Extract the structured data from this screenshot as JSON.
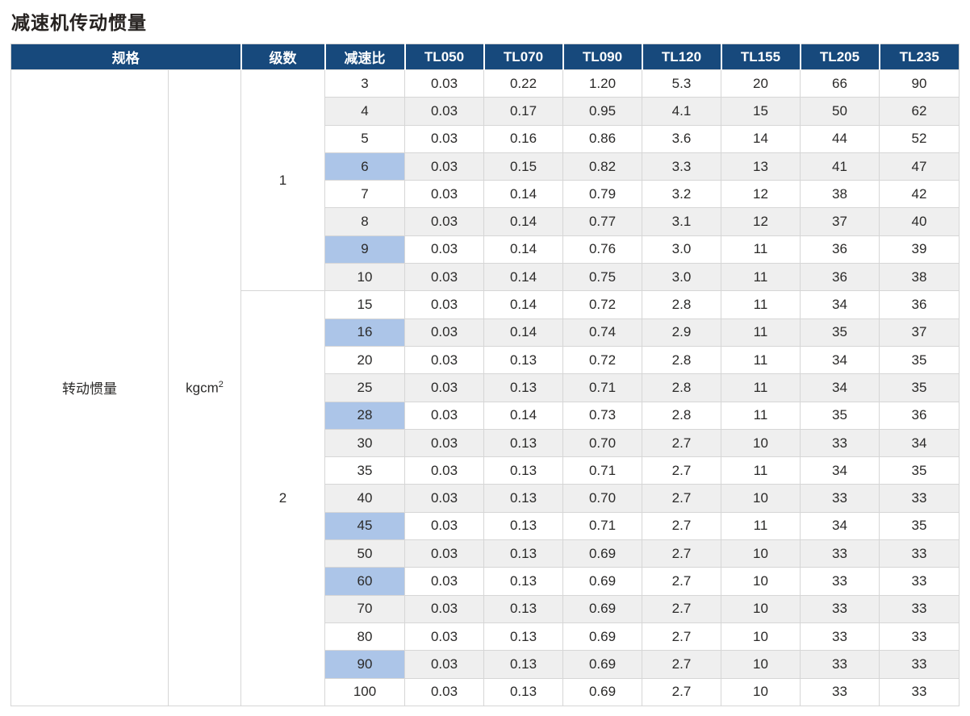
{
  "title": "减速机传动惯量",
  "colors": {
    "header_bg": "#17497C",
    "header_text": "#FFFFFF",
    "highlight_blue": "#ACC5E8",
    "stripe_gray": "#EFEFEF",
    "border_gray": "#D6D6D6",
    "text": "#2B2A29"
  },
  "table": {
    "headers": {
      "spec": "规格",
      "stages": "级数",
      "ratio": "减速比",
      "models": [
        "TL050",
        "TL070",
        "TL090",
        "TL120",
        "TL155",
        "TL205",
        "TL235"
      ]
    },
    "spec_label": "转动惯量",
    "unit_base": "kgcm",
    "unit_sup": "2",
    "stages": [
      {
        "label": "1",
        "rows": [
          {
            "ratio": "3",
            "highlight": false,
            "values": [
              "0.03",
              "0.22",
              "1.20",
              "5.3",
              "20",
              "66",
              "90"
            ]
          },
          {
            "ratio": "4",
            "highlight": false,
            "values": [
              "0.03",
              "0.17",
              "0.95",
              "4.1",
              "15",
              "50",
              "62"
            ]
          },
          {
            "ratio": "5",
            "highlight": false,
            "values": [
              "0.03",
              "0.16",
              "0.86",
              "3.6",
              "14",
              "44",
              "52"
            ]
          },
          {
            "ratio": "6",
            "highlight": true,
            "values": [
              "0.03",
              "0.15",
              "0.82",
              "3.3",
              "13",
              "41",
              "47"
            ]
          },
          {
            "ratio": "7",
            "highlight": false,
            "values": [
              "0.03",
              "0.14",
              "0.79",
              "3.2",
              "12",
              "38",
              "42"
            ]
          },
          {
            "ratio": "8",
            "highlight": false,
            "values": [
              "0.03",
              "0.14",
              "0.77",
              "3.1",
              "12",
              "37",
              "40"
            ]
          },
          {
            "ratio": "9",
            "highlight": true,
            "values": [
              "0.03",
              "0.14",
              "0.76",
              "3.0",
              "11",
              "36",
              "39"
            ]
          },
          {
            "ratio": "10",
            "highlight": false,
            "values": [
              "0.03",
              "0.14",
              "0.75",
              "3.0",
              "11",
              "36",
              "38"
            ]
          }
        ]
      },
      {
        "label": "2",
        "rows": [
          {
            "ratio": "15",
            "highlight": false,
            "values": [
              "0.03",
              "0.14",
              "0.72",
              "2.8",
              "11",
              "34",
              "36"
            ]
          },
          {
            "ratio": "16",
            "highlight": true,
            "values": [
              "0.03",
              "0.14",
              "0.74",
              "2.9",
              "11",
              "35",
              "37"
            ]
          },
          {
            "ratio": "20",
            "highlight": false,
            "values": [
              "0.03",
              "0.13",
              "0.72",
              "2.8",
              "11",
              "34",
              "35"
            ]
          },
          {
            "ratio": "25",
            "highlight": false,
            "values": [
              "0.03",
              "0.13",
              "0.71",
              "2.8",
              "11",
              "34",
              "35"
            ]
          },
          {
            "ratio": "28",
            "highlight": true,
            "values": [
              "0.03",
              "0.14",
              "0.73",
              "2.8",
              "11",
              "35",
              "36"
            ]
          },
          {
            "ratio": "30",
            "highlight": false,
            "values": [
              "0.03",
              "0.13",
              "0.70",
              "2.7",
              "10",
              "33",
              "34"
            ]
          },
          {
            "ratio": "35",
            "highlight": false,
            "values": [
              "0.03",
              "0.13",
              "0.71",
              "2.7",
              "11",
              "34",
              "35"
            ]
          },
          {
            "ratio": "40",
            "highlight": false,
            "values": [
              "0.03",
              "0.13",
              "0.70",
              "2.7",
              "10",
              "33",
              "33"
            ]
          },
          {
            "ratio": "45",
            "highlight": true,
            "values": [
              "0.03",
              "0.13",
              "0.71",
              "2.7",
              "11",
              "34",
              "35"
            ]
          },
          {
            "ratio": "50",
            "highlight": false,
            "values": [
              "0.03",
              "0.13",
              "0.69",
              "2.7",
              "10",
              "33",
              "33"
            ]
          },
          {
            "ratio": "60",
            "highlight": true,
            "values": [
              "0.03",
              "0.13",
              "0.69",
              "2.7",
              "10",
              "33",
              "33"
            ]
          },
          {
            "ratio": "70",
            "highlight": false,
            "values": [
              "0.03",
              "0.13",
              "0.69",
              "2.7",
              "10",
              "33",
              "33"
            ]
          },
          {
            "ratio": "80",
            "highlight": false,
            "values": [
              "0.03",
              "0.13",
              "0.69",
              "2.7",
              "10",
              "33",
              "33"
            ]
          },
          {
            "ratio": "90",
            "highlight": true,
            "values": [
              "0.03",
              "0.13",
              "0.69",
              "2.7",
              "10",
              "33",
              "33"
            ]
          },
          {
            "ratio": "100",
            "highlight": false,
            "values": [
              "0.03",
              "0.13",
              "0.69",
              "2.7",
              "10",
              "33",
              "33"
            ]
          }
        ]
      }
    ]
  }
}
